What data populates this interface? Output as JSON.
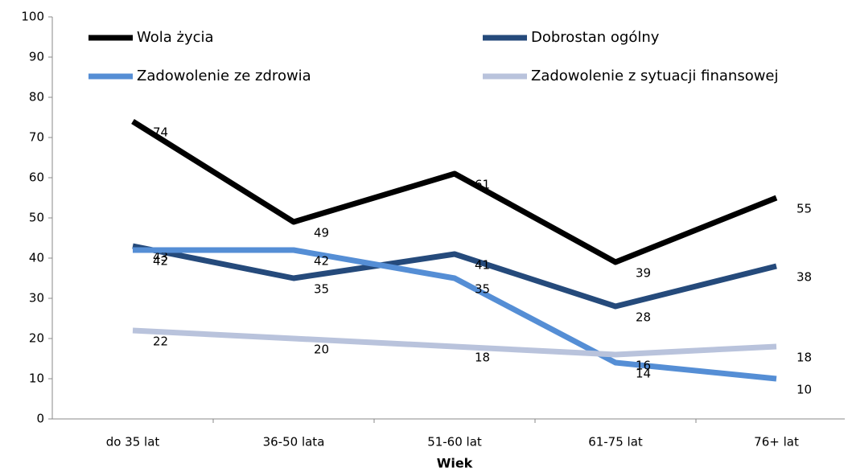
{
  "chart_data": {
    "type": "line",
    "x_label": "Wiek",
    "categories": [
      "do 35 lat",
      "36-50 lata",
      "51-60 lat",
      "61-75 lat",
      "76+ lat"
    ],
    "series": [
      {
        "name": "Wola życia",
        "color": "#000000",
        "values": [
          74,
          49,
          61,
          39,
          55
        ]
      },
      {
        "name": "Dobrostan ogólny",
        "color": "#254a7b",
        "values": [
          43,
          35,
          41,
          28,
          38
        ]
      },
      {
        "name": "Zadowolenie ze zdrowia",
        "color": "#558ed5",
        "values": [
          42,
          42,
          35,
          14,
          10
        ]
      },
      {
        "name": "Zadowolenie z sytuacji finansowej",
        "color": "#b9c3dc",
        "values": [
          22,
          20,
          18,
          16,
          18
        ]
      }
    ],
    "ylim": [
      0,
      100
    ],
    "yticks": [
      0,
      10,
      20,
      30,
      40,
      50,
      60,
      70,
      80,
      90,
      100
    ]
  }
}
